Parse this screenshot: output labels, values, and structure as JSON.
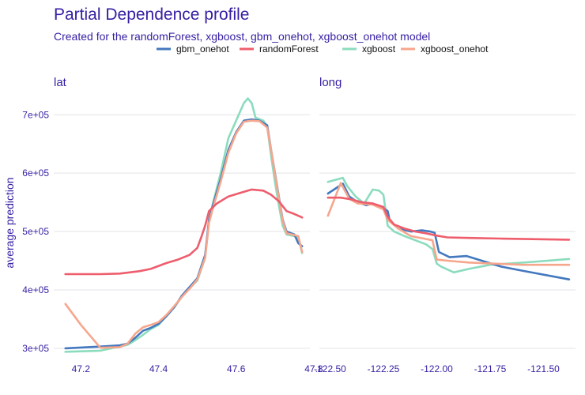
{
  "chart_data": {
    "type": "line",
    "title": "Partial Dependence profile",
    "subtitle": "Created for the randomForest, xgboost, gbm_onehot, xgboost_onehot model",
    "ylabel": "average prediction",
    "ylim": [
      285000,
      745000
    ],
    "y_ticks": [
      300000,
      400000,
      500000,
      600000,
      700000
    ],
    "y_tick_labels": [
      "3e+05",
      "4e+05",
      "5e+05",
      "6e+05",
      "7e+05"
    ],
    "legend_position": "top",
    "legend": [
      {
        "key": "gbm_onehot",
        "name": "gbm_onehot",
        "color": "#4378bf"
      },
      {
        "key": "randomForest",
        "name": "randomForest",
        "color": "#ee5d6c"
      },
      {
        "key": "xgboost",
        "name": "xgboost",
        "color": "#8bdcbe"
      },
      {
        "key": "xgboost_onehot",
        "name": "xgboost_onehot",
        "color": "#f6a68c"
      }
    ],
    "panels": [
      {
        "key": "lat",
        "label": "lat",
        "xlim": [
          47.13,
          47.79
        ],
        "x_ticks": [
          47.2,
          47.4,
          47.6,
          47.8
        ],
        "x_tick_labels": [
          "47.2",
          "47.4",
          "47.6",
          "47.8"
        ],
        "series": [
          {
            "key": "gbm_onehot",
            "points": [
              [
                47.16,
                300000
              ],
              [
                47.25,
                303000
              ],
              [
                47.3,
                305000
              ],
              [
                47.32,
                308000
              ],
              [
                47.34,
                318000
              ],
              [
                47.36,
                330000
              ],
              [
                47.38,
                335000
              ],
              [
                47.4,
                342000
              ],
              [
                47.42,
                355000
              ],
              [
                47.44,
                370000
              ],
              [
                47.46,
                390000
              ],
              [
                47.48,
                405000
              ],
              [
                47.5,
                420000
              ],
              [
                47.52,
                460000
              ],
              [
                47.53,
                520000
              ],
              [
                47.54,
                545000
              ],
              [
                47.56,
                590000
              ],
              [
                47.58,
                640000
              ],
              [
                47.6,
                670000
              ],
              [
                47.62,
                690000
              ],
              [
                47.64,
                692000
              ],
              [
                47.66,
                690000
              ],
              [
                47.68,
                682000
              ],
              [
                47.69,
                640000
              ],
              [
                47.7,
                600000
              ],
              [
                47.71,
                560000
              ],
              [
                47.72,
                520000
              ],
              [
                47.73,
                500000
              ],
              [
                47.75,
                495000
              ],
              [
                47.76,
                480000
              ],
              [
                47.77,
                475000
              ]
            ]
          },
          {
            "key": "randomForest",
            "points": [
              [
                47.16,
                427000
              ],
              [
                47.2,
                427000
              ],
              [
                47.25,
                427000
              ],
              [
                47.3,
                428000
              ],
              [
                47.35,
                432000
              ],
              [
                47.38,
                436000
              ],
              [
                47.42,
                446000
              ],
              [
                47.45,
                452000
              ],
              [
                47.48,
                460000
              ],
              [
                47.5,
                472000
              ],
              [
                47.51,
                490000
              ],
              [
                47.52,
                510000
              ],
              [
                47.53,
                535000
              ],
              [
                47.55,
                548000
              ],
              [
                47.58,
                560000
              ],
              [
                47.61,
                566000
              ],
              [
                47.64,
                572000
              ],
              [
                47.67,
                570000
              ],
              [
                47.69,
                563000
              ],
              [
                47.71,
                552000
              ],
              [
                47.73,
                535000
              ],
              [
                47.75,
                530000
              ],
              [
                47.77,
                524000
              ]
            ]
          },
          {
            "key": "xgboost",
            "points": [
              [
                47.16,
                294000
              ],
              [
                47.25,
                296000
              ],
              [
                47.3,
                303000
              ],
              [
                47.32,
                306000
              ],
              [
                47.34,
                314000
              ],
              [
                47.36,
                323000
              ],
              [
                47.38,
                333000
              ],
              [
                47.4,
                340000
              ],
              [
                47.42,
                355000
              ],
              [
                47.44,
                370000
              ],
              [
                47.46,
                388000
              ],
              [
                47.48,
                403000
              ],
              [
                47.5,
                416000
              ],
              [
                47.52,
                455000
              ],
              [
                47.53,
                520000
              ],
              [
                47.54,
                548000
              ],
              [
                47.56,
                600000
              ],
              [
                47.58,
                660000
              ],
              [
                47.6,
                690000
              ],
              [
                47.62,
                720000
              ],
              [
                47.63,
                728000
              ],
              [
                47.64,
                720000
              ],
              [
                47.65,
                695000
              ],
              [
                47.67,
                690000
              ],
              [
                47.68,
                680000
              ],
              [
                47.69,
                630000
              ],
              [
                47.7,
                585000
              ],
              [
                47.71,
                545000
              ],
              [
                47.72,
                510000
              ],
              [
                47.73,
                495000
              ],
              [
                47.75,
                492000
              ],
              [
                47.76,
                490000
              ],
              [
                47.77,
                463000
              ]
            ]
          },
          {
            "key": "xgboost_onehot",
            "points": [
              [
                47.16,
                376000
              ],
              [
                47.2,
                340000
              ],
              [
                47.25,
                301000
              ],
              [
                47.3,
                302000
              ],
              [
                47.32,
                308000
              ],
              [
                47.34,
                325000
              ],
              [
                47.36,
                336000
              ],
              [
                47.38,
                340000
              ],
              [
                47.4,
                345000
              ],
              [
                47.42,
                357000
              ],
              [
                47.44,
                372000
              ],
              [
                47.46,
                388000
              ],
              [
                47.48,
                402000
              ],
              [
                47.5,
                418000
              ],
              [
                47.52,
                455000
              ],
              [
                47.53,
                515000
              ],
              [
                47.54,
                540000
              ],
              [
                47.56,
                585000
              ],
              [
                47.58,
                635000
              ],
              [
                47.6,
                668000
              ],
              [
                47.62,
                688000
              ],
              [
                47.64,
                690000
              ],
              [
                47.66,
                689000
              ],
              [
                47.68,
                678000
              ],
              [
                47.69,
                640000
              ],
              [
                47.7,
                598000
              ],
              [
                47.71,
                558000
              ],
              [
                47.72,
                518000
              ],
              [
                47.73,
                497000
              ],
              [
                47.75,
                494000
              ],
              [
                47.76,
                492000
              ],
              [
                47.77,
                465000
              ]
            ]
          }
        ]
      },
      {
        "key": "long",
        "label": "long",
        "xlim": [
          -122.55,
          -121.35
        ],
        "x_ticks": [
          -122.5,
          -122.25,
          -122.0,
          -121.75,
          -121.5
        ],
        "x_tick_labels": [
          "-122.50",
          "-122.25",
          "-122.00",
          "-121.75",
          "-121.50"
        ],
        "series": [
          {
            "key": "gbm_onehot",
            "points": [
              [
                -122.51,
                565000
              ],
              [
                -122.44,
                582000
              ],
              [
                -122.41,
                560000
              ],
              [
                -122.37,
                550000
              ],
              [
                -122.33,
                545000
              ],
              [
                -122.3,
                548000
              ],
              [
                -122.25,
                540000
              ],
              [
                -122.23,
                535000
              ],
              [
                -122.22,
                518000
              ],
              [
                -122.18,
                505000
              ],
              [
                -122.12,
                500000
              ],
              [
                -122.07,
                502000
              ],
              [
                -122.03,
                500000
              ],
              [
                -122.01,
                498000
              ],
              [
                -121.99,
                465000
              ],
              [
                -121.94,
                456000
              ],
              [
                -121.86,
                458000
              ],
              [
                -121.7,
                440000
              ],
              [
                -121.6,
                433000
              ],
              [
                -121.38,
                418000
              ]
            ]
          },
          {
            "key": "randomForest",
            "points": [
              [
                -122.51,
                558000
              ],
              [
                -122.45,
                558000
              ],
              [
                -122.4,
                555000
              ],
              [
                -122.35,
                550000
              ],
              [
                -122.3,
                548000
              ],
              [
                -122.25,
                542000
              ],
              [
                -122.23,
                525000
              ],
              [
                -122.2,
                512000
              ],
              [
                -122.15,
                505000
              ],
              [
                -122.1,
                500000
              ],
              [
                -122.05,
                497000
              ],
              [
                -122.0,
                493000
              ],
              [
                -121.95,
                490000
              ],
              [
                -121.85,
                489000
              ],
              [
                -121.7,
                488000
              ],
              [
                -121.55,
                487000
              ],
              [
                -121.38,
                486000
              ]
            ]
          },
          {
            "key": "xgboost",
            "points": [
              [
                -122.51,
                585000
              ],
              [
                -122.44,
                592000
              ],
              [
                -122.42,
                578000
              ],
              [
                -122.38,
                560000
              ],
              [
                -122.34,
                548000
              ],
              [
                -122.3,
                572000
              ],
              [
                -122.27,
                570000
              ],
              [
                -122.25,
                563000
              ],
              [
                -122.23,
                510000
              ],
              [
                -122.2,
                500000
              ],
              [
                -122.15,
                492000
              ],
              [
                -122.1,
                485000
              ],
              [
                -122.05,
                478000
              ],
              [
                -122.02,
                470000
              ],
              [
                -122.0,
                445000
              ],
              [
                -121.98,
                440000
              ],
              [
                -121.92,
                430000
              ],
              [
                -121.85,
                436000
              ],
              [
                -121.75,
                443000
              ],
              [
                -121.55,
                448000
              ],
              [
                -121.38,
                453000
              ]
            ]
          },
          {
            "key": "xgboost_onehot",
            "points": [
              [
                -122.51,
                527000
              ],
              [
                -122.45,
                583000
              ],
              [
                -122.41,
                556000
              ],
              [
                -122.37,
                548000
              ],
              [
                -122.33,
                547000
              ],
              [
                -122.3,
                546000
              ],
              [
                -122.25,
                538000
              ],
              [
                -122.23,
                520000
              ],
              [
                -122.18,
                505000
              ],
              [
                -122.12,
                492000
              ],
              [
                -122.06,
                488000
              ],
              [
                -122.02,
                485000
              ],
              [
                -122.0,
                452000
              ],
              [
                -121.95,
                450000
              ],
              [
                -121.85,
                447000
              ],
              [
                -121.6,
                443000
              ],
              [
                -121.38,
                443000
              ]
            ]
          }
        ]
      }
    ]
  }
}
